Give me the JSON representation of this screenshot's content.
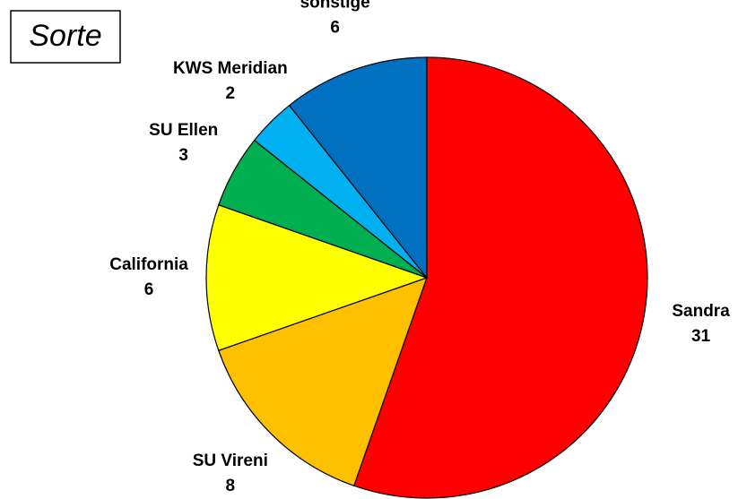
{
  "chart_data": {
    "type": "pie",
    "title": "Sorte",
    "categories": [
      "Sandra",
      "SU Vireni",
      "California",
      "SU Ellen",
      "KWS Meridian",
      "sonstige"
    ],
    "values": [
      31,
      8,
      6,
      3,
      2,
      6
    ],
    "colors": [
      "#ff0000",
      "#ffc000",
      "#ffff00",
      "#00b050",
      "#00b0f0",
      "#0070c0"
    ]
  }
}
